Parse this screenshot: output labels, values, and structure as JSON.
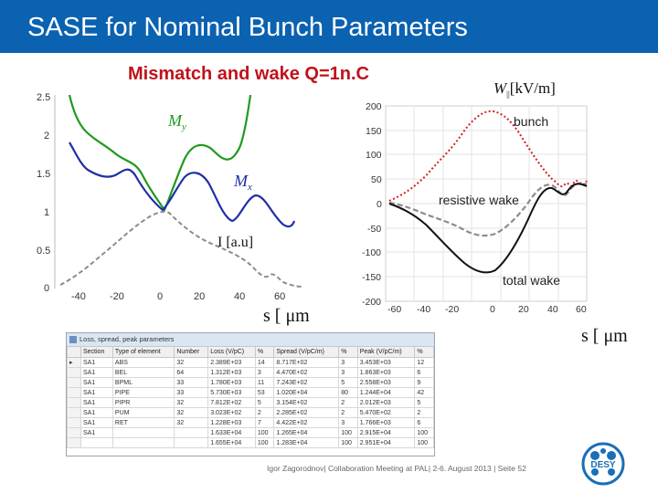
{
  "header": {
    "title": "SASE for Nominal Bunch Parameters"
  },
  "subtitle": "Mismatch and wake Q=1n.C",
  "left_chart": {
    "yticks": [
      "2.5",
      "2",
      "1.5",
      "1",
      "0.5",
      "0"
    ],
    "xticks": [
      "-40",
      "-20",
      "0",
      "20",
      "40",
      "60"
    ],
    "label_my": "M",
    "label_my_sub": "y",
    "label_mx": "M",
    "label_mx_sub": "x",
    "label_i": "I [a.u]",
    "xlabel": "s [ μm",
    "colors": {
      "my": "#1e9a1e",
      "mx": "#1e2fa6",
      "current": "#8c8c8c"
    }
  },
  "right_chart": {
    "ylabel": "W",
    "ylabel_sub": "||",
    "ylabel_unit": "[kV/m]",
    "yticks": [
      "200",
      "150",
      "100",
      "50",
      "0",
      "-50",
      "-100",
      "-150",
      "-200"
    ],
    "xticks": [
      "-60",
      "-40",
      "-20",
      "0",
      "20",
      "40",
      "60"
    ],
    "label_bunch": "bunch",
    "label_resistive": "resistive wake",
    "label_total": "total wake",
    "xlabel": "s [ μm",
    "colors": {
      "bunch": "#d42020",
      "resistive": "#8c8c8c",
      "total": "#111111"
    }
  },
  "table": {
    "caption": "Loss, spread, peak parameters",
    "headers": [
      "Section",
      "Type of element",
      "Number",
      "Loss (V/pC)",
      "%",
      "Spread (V/pC/m)",
      "%",
      "Peak (V/pC/m)",
      "%"
    ],
    "rows": [
      [
        "SA1",
        "ABS",
        "32",
        "2.389E+03",
        "14",
        "8.717E+02",
        "3",
        "3.453E+03",
        "12"
      ],
      [
        "SA1",
        "BEL",
        "64",
        "1.312E+03",
        "3",
        "4.470E+02",
        "3",
        "1.863E+03",
        "6"
      ],
      [
        "SA1",
        "BPML",
        "33",
        "1.780E+03",
        "11",
        "7.243E+02",
        "5",
        "2.558E+03",
        "9"
      ],
      [
        "SA1",
        "PIPE",
        "33",
        "5.730E+03",
        "53",
        "1.020E+04",
        "80",
        "1.244E+04",
        "42"
      ],
      [
        "SA1",
        "PIPR",
        "32",
        "7.812E+02",
        "5",
        "3.154E+02",
        "2",
        "2.012E+03",
        "5"
      ],
      [
        "SA1",
        "PUM",
        "32",
        "3.023E+02",
        "2",
        "2.285E+02",
        "2",
        "5.470E+02",
        "2"
      ],
      [
        "SA1",
        "RET",
        "32",
        "1.228E+03",
        "7",
        "4.422E+02",
        "3",
        "1.766E+03",
        "6"
      ],
      [
        "SA1",
        "",
        "",
        "1.633E+04",
        "100",
        "1.265E+04",
        "100",
        "2.915E+04",
        "100"
      ],
      [
        "",
        "",
        "",
        "1.655E+04",
        "100",
        "1.283E+04",
        "100",
        "2.951E+04",
        "100"
      ]
    ]
  },
  "footer": "Igor Zagorodnov| Collaboration Meeting at PAL| 2-6. August 2013 | Seite 52",
  "logo": {
    "text": "DESY",
    "icon": "desy-logo-icon",
    "color": "#1a6fb8"
  }
}
